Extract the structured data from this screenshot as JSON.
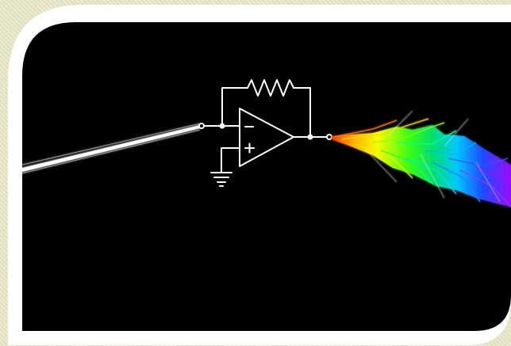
{
  "image": {
    "type": "opamp-prism-illustration",
    "components": [
      "white-beam",
      "feedback-resistor",
      "inverting-input",
      "non-inverting-input",
      "ground-symbol",
      "opamp-triangle",
      "output-node",
      "rainbow-spectrum"
    ]
  },
  "colors": {
    "background": "#e8e6c6",
    "frame": "#ffffff",
    "panel": "#000000",
    "circuit": "#ffffff",
    "spectrum": [
      "#ff3b00",
      "#ffb000",
      "#f6ff00",
      "#39ff14",
      "#00e070",
      "#00c8ff",
      "#1e4bff",
      "#7a2cff",
      "#b000ff"
    ]
  }
}
